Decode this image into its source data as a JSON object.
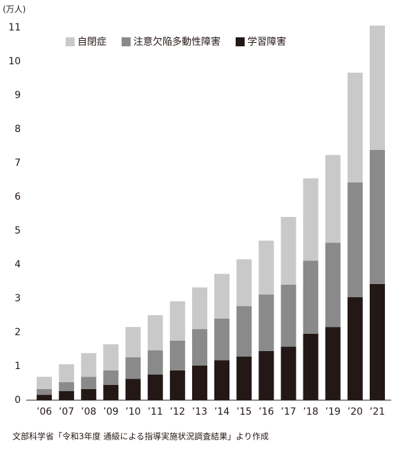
{
  "chart_data": {
    "type": "stacked_bar",
    "y_label": "(万人)",
    "source": "文部科学省「令和3年度 通級による指導実施状況調査結果」より作成",
    "categories": [
      "’06",
      "’07",
      "’08",
      "’09",
      "’10",
      "’11",
      "’12",
      "’13",
      "’14",
      "’15",
      "’16",
      "’17",
      "’18",
      "’19",
      "’20",
      "’21"
    ],
    "series": [
      {
        "name": "自閉症",
        "color": "#c9c9c9",
        "values": [
          0.36,
          0.53,
          0.7,
          0.77,
          0.89,
          1.04,
          1.16,
          1.23,
          1.32,
          1.38,
          1.59,
          2.0,
          2.43,
          2.59,
          3.24,
          3.67
        ]
      },
      {
        "name": "注意欠陥多動性障害",
        "color": "#8a8a8a",
        "values": [
          0.17,
          0.26,
          0.36,
          0.43,
          0.64,
          0.71,
          0.88,
          1.08,
          1.23,
          1.49,
          1.67,
          1.83,
          2.16,
          2.49,
          3.39,
          3.96
        ]
      },
      {
        "name": "学習障害",
        "color": "#231815",
        "values": [
          0.16,
          0.27,
          0.33,
          0.45,
          0.63,
          0.76,
          0.88,
          1.02,
          1.18,
          1.29,
          1.45,
          1.58,
          1.96,
          2.16,
          3.04,
          3.43
        ]
      }
    ],
    "ylim": [
      0,
      11
    ],
    "yticks": [
      0,
      1,
      2,
      3,
      4,
      5,
      6,
      7,
      8,
      9,
      10,
      11
    ],
    "grid": false,
    "legend": "top"
  }
}
